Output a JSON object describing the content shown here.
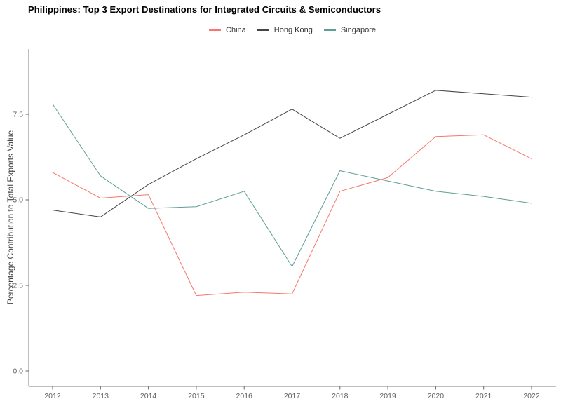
{
  "chart": {
    "title": "Philippines: Top 3 Export Destinations for Integrated Circuits & Semiconductors",
    "ylabel": "Percentage Contribution to Total Exports Value"
  },
  "legend": {
    "position": "top-center",
    "items": [
      {
        "label": "China",
        "color": "#f8766d"
      },
      {
        "label": "Hong Kong",
        "color": "#454545"
      },
      {
        "label": "Singapore",
        "color": "#5f9e96"
      }
    ]
  },
  "chart_data": {
    "type": "line",
    "title": "Philippines: Top 3 Export Destinations for Integrated Circuits & Semiconductors",
    "xlabel": "",
    "ylabel": "Percentage Contribution to Total Exports Value",
    "x": [
      2012,
      2013,
      2014,
      2015,
      2016,
      2017,
      2018,
      2019,
      2020,
      2021,
      2022
    ],
    "series": [
      {
        "name": "China",
        "color": "#f8766d",
        "values": [
          5.8,
          5.05,
          5.15,
          2.2,
          2.3,
          2.25,
          5.25,
          5.65,
          6.85,
          6.9,
          6.2
        ]
      },
      {
        "name": "Hong Kong",
        "color": "#454545",
        "values": [
          4.7,
          4.5,
          5.45,
          6.2,
          6.9,
          7.65,
          6.8,
          7.5,
          8.2,
          8.1,
          8.0
        ]
      },
      {
        "name": "Singapore",
        "color": "#5f9e96",
        "values": [
          7.8,
          5.7,
          4.75,
          4.8,
          5.25,
          3.05,
          5.85,
          5.55,
          5.25,
          5.1,
          4.9
        ]
      }
    ],
    "yticks": [
      0.0,
      2.5,
      5.0,
      7.5
    ],
    "ytick_labels": [
      "0.0",
      "2.5",
      "5.0",
      "7.5"
    ],
    "ylim": [
      -0.45,
      9.4
    ],
    "grid": false,
    "legend_position": "top-center"
  },
  "axis_style": {
    "axis_color": "#7f7f7f",
    "tick_color": "#666666",
    "tick_label_color": "#606060"
  }
}
